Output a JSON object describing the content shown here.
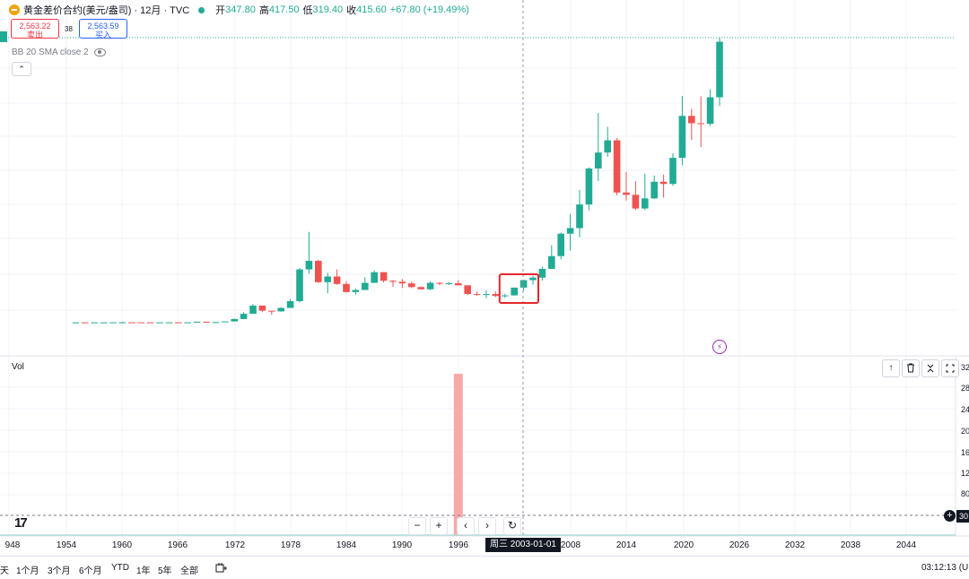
{
  "legend": {
    "symbol": "黄金差价合约(美元/盎司) · 12月 · TVC",
    "open_label": "开",
    "open": "347.80",
    "high_label": "高",
    "high": "417.50",
    "low_label": "低",
    "low": "319.40",
    "close_label": "收",
    "close": "415.60",
    "change": "+67.80 (+19.49%)"
  },
  "trade": {
    "sell_price": "2,563.22",
    "sell_label": "卖出",
    "spread": "38",
    "buy_price": "2,563.59",
    "buy_label": "买入"
  },
  "indicator": {
    "bb_label": "BB 20 SMA close 2"
  },
  "volume_pane": {
    "label": "Vol"
  },
  "nav_buttons": {
    "zoom_out": "−",
    "zoom_in": "+",
    "scroll_left": "‹",
    "scroll_right": "›"
  },
  "crosshair": {
    "date_label": "周三 2003-01-01"
  },
  "ranges": [
    "天",
    "1个月",
    "3个月",
    "6个月",
    "YTD",
    "1年",
    "5年",
    "全部"
  ],
  "clock": "03:12:13 (U",
  "colors": {
    "up": "#22ab94",
    "down": "#ef5350",
    "vol_down": "#f7a9a7",
    "highlight": "#e5262a"
  },
  "chart_data": {
    "type": "candlestick",
    "x_ticks": [
      "948",
      "1954",
      "1960",
      "1966",
      "1972",
      "1978",
      "1984",
      "1990",
      "1996",
      "2008",
      "2014",
      "2020",
      "2026",
      "2032",
      "2038",
      "2044"
    ],
    "vol_ticks": [
      "32",
      "28",
      "24",
      "20",
      "16",
      "12",
      "80",
      "30"
    ],
    "price_range": [
      0,
      2600
    ],
    "candles": [
      {
        "year": 1955,
        "o": 35,
        "h": 35.5,
        "l": 34.8,
        "c": 35.1
      },
      {
        "year": 1956,
        "o": 35.1,
        "h": 35.3,
        "l": 34.9,
        "c": 35.0
      },
      {
        "year": 1957,
        "o": 35.0,
        "h": 35.2,
        "l": 34.8,
        "c": 35.1
      },
      {
        "year": 1958,
        "o": 35.1,
        "h": 35.4,
        "l": 34.9,
        "c": 35.2
      },
      {
        "year": 1959,
        "o": 35.2,
        "h": 35.6,
        "l": 35.0,
        "c": 35.3
      },
      {
        "year": 1960,
        "o": 35.3,
        "h": 40,
        "l": 35,
        "c": 35.6
      },
      {
        "year": 1961,
        "o": 35.6,
        "h": 36,
        "l": 35,
        "c": 35.5
      },
      {
        "year": 1962,
        "o": 35.5,
        "h": 35.8,
        "l": 35,
        "c": 35.4
      },
      {
        "year": 1963,
        "o": 35.4,
        "h": 35.6,
        "l": 35,
        "c": 35.3
      },
      {
        "year": 1964,
        "o": 35.3,
        "h": 35.5,
        "l": 35,
        "c": 35.4
      },
      {
        "year": 1965,
        "o": 35.4,
        "h": 35.6,
        "l": 35,
        "c": 35.5
      },
      {
        "year": 1966,
        "o": 35.5,
        "h": 35.7,
        "l": 35,
        "c": 35.4
      },
      {
        "year": 1967,
        "o": 35.4,
        "h": 35.8,
        "l": 35,
        "c": 35.5
      },
      {
        "year": 1968,
        "o": 35.5,
        "h": 43,
        "l": 35,
        "c": 41
      },
      {
        "year": 1969,
        "o": 41,
        "h": 43,
        "l": 35,
        "c": 35.2
      },
      {
        "year": 1970,
        "o": 35.2,
        "h": 39,
        "l": 34.8,
        "c": 37.4
      },
      {
        "year": 1971,
        "o": 37.4,
        "h": 44,
        "l": 37,
        "c": 43.6
      },
      {
        "year": 1972,
        "o": 43.6,
        "h": 70,
        "l": 43,
        "c": 65
      },
      {
        "year": 1973,
        "o": 65,
        "h": 127,
        "l": 64,
        "c": 112
      },
      {
        "year": 1974,
        "o": 112,
        "h": 200,
        "l": 112,
        "c": 186
      },
      {
        "year": 1975,
        "o": 186,
        "h": 186,
        "l": 128,
        "c": 140
      },
      {
        "year": 1976,
        "o": 140,
        "h": 140,
        "l": 103,
        "c": 134
      },
      {
        "year": 1977,
        "o": 134,
        "h": 170,
        "l": 130,
        "c": 165
      },
      {
        "year": 1978,
        "o": 165,
        "h": 245,
        "l": 165,
        "c": 226
      },
      {
        "year": 1979,
        "o": 226,
        "h": 525,
        "l": 216,
        "c": 512
      },
      {
        "year": 1980,
        "o": 512,
        "h": 850,
        "l": 474,
        "c": 589
      },
      {
        "year": 1981,
        "o": 589,
        "h": 599,
        "l": 390,
        "c": 397
      },
      {
        "year": 1982,
        "o": 397,
        "h": 481,
        "l": 297,
        "c": 448
      },
      {
        "year": 1983,
        "o": 448,
        "h": 512,
        "l": 373,
        "c": 381
      },
      {
        "year": 1984,
        "o": 381,
        "h": 406,
        "l": 303,
        "c": 308
      },
      {
        "year": 1985,
        "o": 308,
        "h": 341,
        "l": 285,
        "c": 327
      },
      {
        "year": 1986,
        "o": 327,
        "h": 442,
        "l": 326,
        "c": 391
      },
      {
        "year": 1987,
        "o": 391,
        "h": 502,
        "l": 390,
        "c": 487
      },
      {
        "year": 1988,
        "o": 487,
        "h": 487,
        "l": 395,
        "c": 410
      },
      {
        "year": 1989,
        "o": 410,
        "h": 415,
        "l": 355,
        "c": 401
      },
      {
        "year": 1990,
        "o": 401,
        "h": 425,
        "l": 345,
        "c": 386
      },
      {
        "year": 1991,
        "o": 386,
        "h": 403,
        "l": 344,
        "c": 353
      },
      {
        "year": 1992,
        "o": 353,
        "h": 360,
        "l": 330,
        "c": 333
      },
      {
        "year": 1993,
        "o": 333,
        "h": 407,
        "l": 326,
        "c": 391
      },
      {
        "year": 1994,
        "o": 391,
        "h": 398,
        "l": 370,
        "c": 383
      },
      {
        "year": 1995,
        "o": 383,
        "h": 396,
        "l": 372,
        "c": 387
      },
      {
        "year": 1996,
        "o": 387,
        "h": 415,
        "l": 367,
        "c": 369
      },
      {
        "year": 1997,
        "o": 369,
        "h": 367,
        "l": 283,
        "c": 290
      },
      {
        "year": 1998,
        "o": 290,
        "h": 313,
        "l": 273,
        "c": 288
      },
      {
        "year": 1999,
        "o": 288,
        "h": 325,
        "l": 252,
        "c": 290
      },
      {
        "year": 2000,
        "o": 290,
        "h": 313,
        "l": 263,
        "c": 273
      },
      {
        "year": 2001,
        "o": 273,
        "h": 293,
        "l": 255,
        "c": 278
      },
      {
        "year": 2002,
        "o": 278,
        "h": 349,
        "l": 277,
        "c": 348
      },
      {
        "year": 2003,
        "o": 347.8,
        "h": 417.5,
        "l": 319.4,
        "c": 415.6
      },
      {
        "year": 2004,
        "o": 415.6,
        "h": 456,
        "l": 375,
        "c": 438
      },
      {
        "year": 2005,
        "o": 438,
        "h": 537,
        "l": 411,
        "c": 517
      },
      {
        "year": 2006,
        "o": 517,
        "h": 730,
        "l": 517,
        "c": 632
      },
      {
        "year": 2007,
        "o": 632,
        "h": 845,
        "l": 603,
        "c": 834
      },
      {
        "year": 2008,
        "o": 834,
        "h": 1011,
        "l": 681,
        "c": 884
      },
      {
        "year": 2009,
        "o": 884,
        "h": 1226,
        "l": 802,
        "c": 1097
      },
      {
        "year": 2010,
        "o": 1097,
        "h": 1431,
        "l": 1044,
        "c": 1421
      },
      {
        "year": 2011,
        "o": 1421,
        "h": 1921,
        "l": 1308,
        "c": 1565
      },
      {
        "year": 2012,
        "o": 1565,
        "h": 1796,
        "l": 1526,
        "c": 1675
      },
      {
        "year": 2013,
        "o": 1675,
        "h": 1696,
        "l": 1180,
        "c": 1205
      },
      {
        "year": 2014,
        "o": 1205,
        "h": 1392,
        "l": 1131,
        "c": 1184
      },
      {
        "year": 2015,
        "o": 1184,
        "h": 1307,
        "l": 1046,
        "c": 1061
      },
      {
        "year": 2016,
        "o": 1061,
        "h": 1375,
        "l": 1046,
        "c": 1152
      },
      {
        "year": 2017,
        "o": 1152,
        "h": 1358,
        "l": 1146,
        "c": 1302
      },
      {
        "year": 2018,
        "o": 1302,
        "h": 1366,
        "l": 1160,
        "c": 1282
      },
      {
        "year": 2019,
        "o": 1282,
        "h": 1557,
        "l": 1266,
        "c": 1517
      },
      {
        "year": 2020,
        "o": 1517,
        "h": 2075,
        "l": 1451,
        "c": 1895
      },
      {
        "year": 2021,
        "o": 1895,
        "h": 1959,
        "l": 1677,
        "c": 1829
      },
      {
        "year": 2022,
        "o": 1829,
        "h": 2070,
        "l": 1615,
        "c": 1824
      },
      {
        "year": 2023,
        "o": 1824,
        "h": 2135,
        "l": 1804,
        "c": 2063
      },
      {
        "year": 2024,
        "o": 2063,
        "h": 2600,
        "l": 1984,
        "c": 2563
      }
    ],
    "volume": [
      {
        "year": 1996,
        "value": 31,
        "dir": "down"
      }
    ],
    "highlight_years": [
      2001,
      2004
    ]
  }
}
